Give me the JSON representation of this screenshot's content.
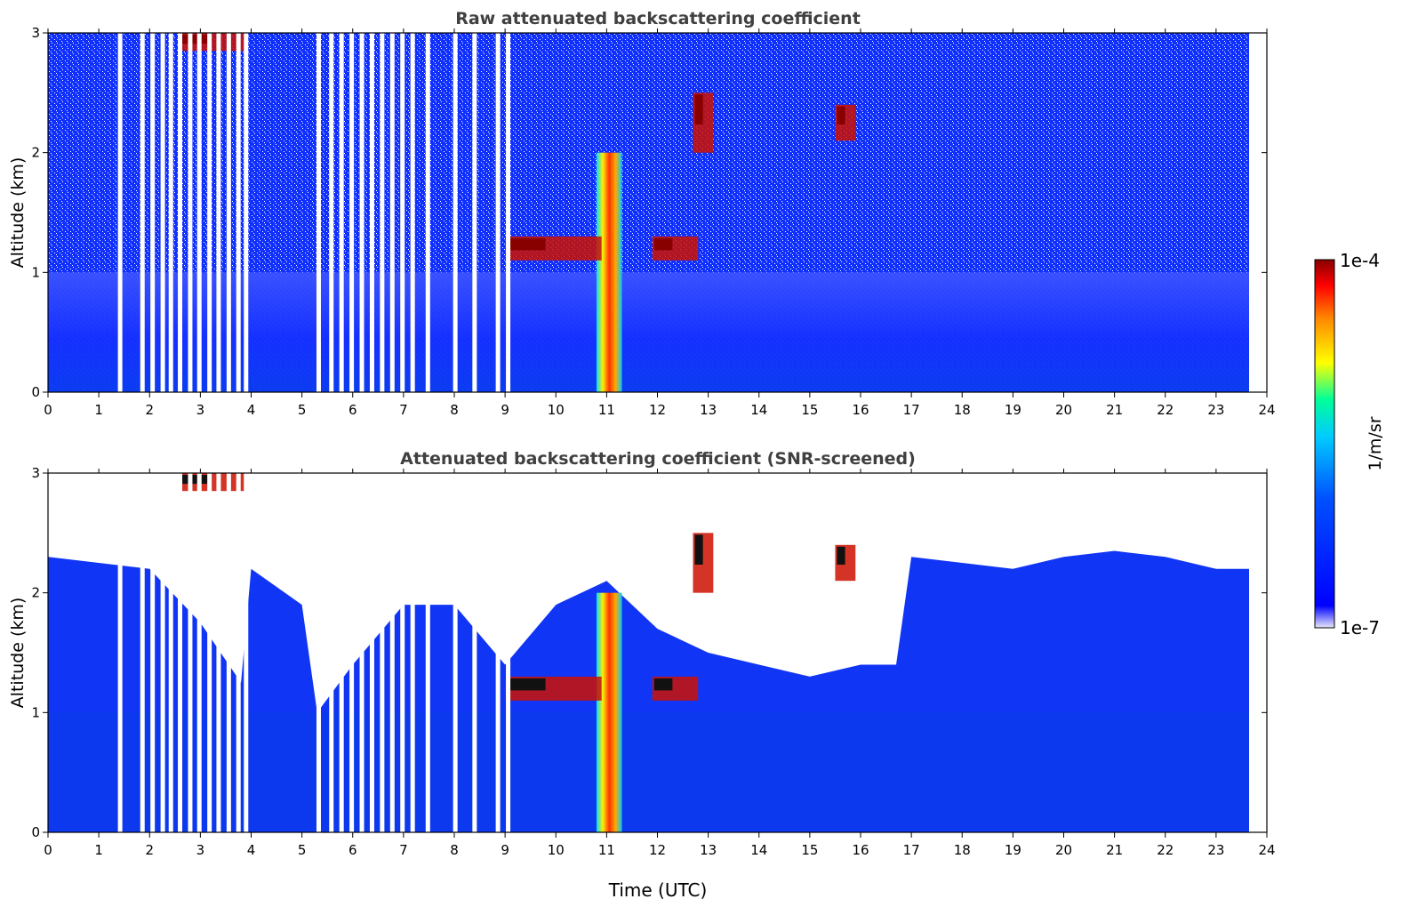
{
  "chart_data": [
    {
      "type": "heatmap",
      "title": "Raw attenuated backscattering coefficient",
      "xlabel": "",
      "ylabel": "Altitude (km)",
      "xlim": [
        0,
        24
      ],
      "ylim": [
        0,
        3
      ],
      "xticks": [
        "0",
        "1",
        "2",
        "3",
        "4",
        "5",
        "6",
        "7",
        "8",
        "9",
        "10",
        "11",
        "12",
        "13",
        "14",
        "15",
        "16",
        "17",
        "18",
        "19",
        "20",
        "21",
        "22",
        "23",
        "24"
      ],
      "yticks": [
        "0",
        "1",
        "2",
        "3"
      ],
      "data_end_time": 23.65,
      "gaps_utc": [
        1.42,
        1.86,
        2.06,
        2.26,
        2.42,
        2.6,
        2.8,
        2.98,
        3.18,
        3.36,
        3.56,
        3.75,
        3.9,
        5.33,
        5.58,
        5.78,
        5.98,
        6.18,
        6.38,
        6.58,
        6.78,
        6.98,
        7.18,
        7.48,
        8.02,
        8.4,
        8.86,
        9.06
      ],
      "features": [
        {
          "name": "convective plume",
          "time": [
            10.8,
            11.3
          ],
          "altitude": [
            0,
            2.0
          ],
          "level": "high"
        },
        {
          "name": "cloud base layer",
          "time": [
            9.0,
            10.9
          ],
          "altitude": [
            1.1,
            1.3
          ],
          "level": "high"
        },
        {
          "name": "cloud base layer",
          "time": [
            11.9,
            12.8
          ],
          "altitude": [
            1.1,
            1.3
          ],
          "level": "high"
        },
        {
          "name": "elevated cloud",
          "time": [
            15.5,
            15.9
          ],
          "altitude": [
            2.1,
            2.4
          ],
          "level": "high"
        },
        {
          "name": "elevated cloud",
          "time": [
            12.7,
            13.1
          ],
          "altitude": [
            2.0,
            2.5
          ],
          "level": "high"
        },
        {
          "name": "cloud top",
          "time": [
            2.6,
            3.9
          ],
          "altitude": [
            2.85,
            3.0
          ],
          "level": "high"
        }
      ]
    },
    {
      "type": "heatmap",
      "title": "Attenuated backscattering coefficient (SNR-screened)",
      "xlabel": "Time (UTC)",
      "ylabel": "Altitude (km)",
      "xlim": [
        0,
        24
      ],
      "ylim": [
        0,
        3
      ],
      "xticks": [
        "0",
        "1",
        "2",
        "3",
        "4",
        "5",
        "6",
        "7",
        "8",
        "9",
        "10",
        "11",
        "12",
        "13",
        "14",
        "15",
        "16",
        "17",
        "18",
        "19",
        "20",
        "21",
        "22",
        "23",
        "24"
      ],
      "yticks": [
        "0",
        "1",
        "2",
        "3"
      ],
      "data_end_time": 23.65,
      "screened_top_profile": [
        [
          0,
          2.3
        ],
        [
          1,
          2.25
        ],
        [
          2,
          2.2
        ],
        [
          3,
          1.75
        ],
        [
          3.8,
          1.25
        ],
        [
          4,
          2.2
        ],
        [
          5,
          1.9
        ],
        [
          5.3,
          1.0
        ],
        [
          6,
          1.4
        ],
        [
          7,
          1.9
        ],
        [
          8,
          1.9
        ],
        [
          9,
          1.4
        ],
        [
          10,
          1.9
        ],
        [
          11,
          2.1
        ],
        [
          12,
          1.7
        ],
        [
          13,
          1.5
        ],
        [
          14,
          1.4
        ],
        [
          15,
          1.3
        ],
        [
          16,
          1.4
        ],
        [
          16.7,
          1.4
        ],
        [
          17,
          2.3
        ],
        [
          18,
          2.25
        ],
        [
          19,
          2.2
        ],
        [
          20,
          2.3
        ],
        [
          21,
          2.35
        ],
        [
          22,
          2.3
        ],
        [
          23,
          2.2
        ],
        [
          23.65,
          2.2
        ]
      ]
    }
  ],
  "colorbar": {
    "label": "1/m/sr",
    "min_label": "1e-7",
    "max_label": "1e-4",
    "colors": [
      "#e8e8f8",
      "#0000ff",
      "#00aaff",
      "#00ffff",
      "#ffff00",
      "#ff8800",
      "#ff0000",
      "#880000"
    ]
  }
}
